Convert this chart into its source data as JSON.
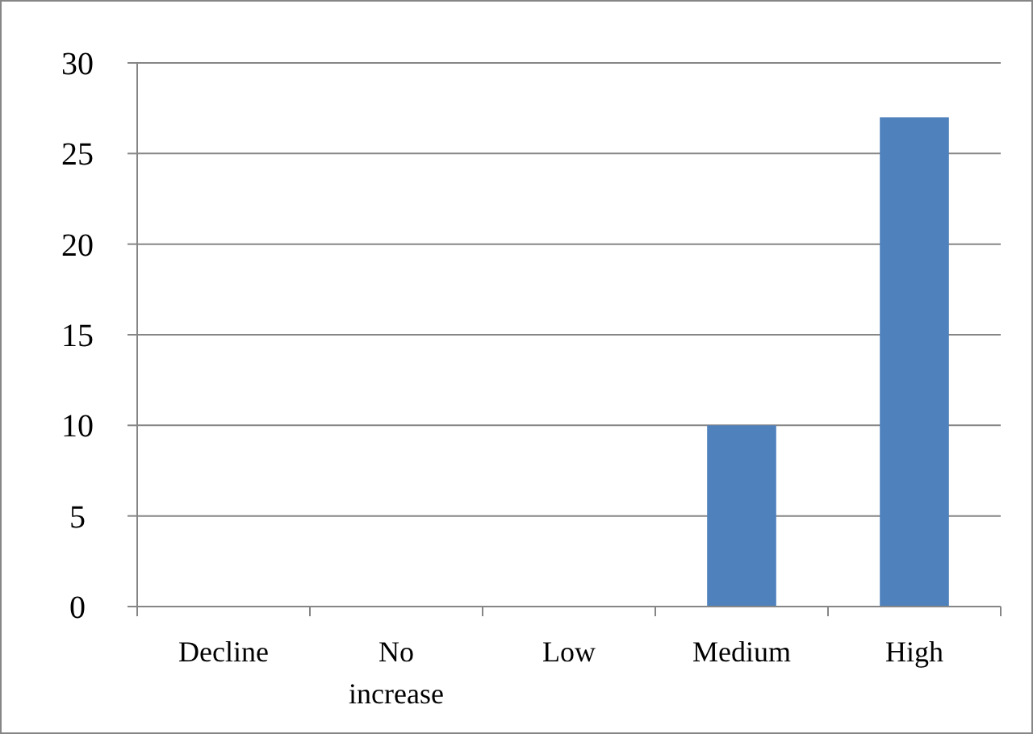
{
  "chart_data": {
    "type": "bar",
    "categories": [
      "Decline",
      "No increase",
      "Low",
      "Medium",
      "High"
    ],
    "values": [
      0,
      0,
      0,
      10,
      27
    ],
    "color": "#4f81bd",
    "ylim": [
      0,
      30
    ],
    "yticks": [
      0,
      5,
      10,
      15,
      20,
      25,
      30
    ],
    "grid": "y"
  }
}
